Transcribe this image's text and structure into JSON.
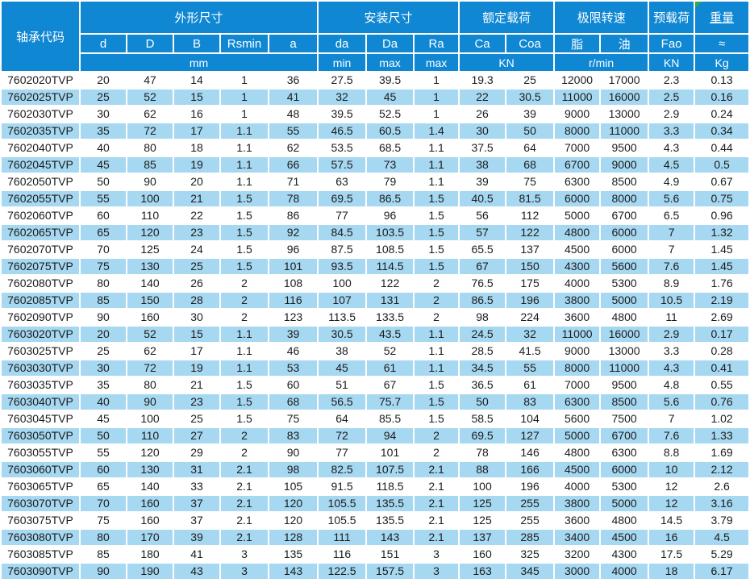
{
  "table": {
    "header": {
      "code_label": "轴承代码",
      "groups": {
        "dimensions": "外形尺寸",
        "mounting": "安装尺寸",
        "rated_load": "额定载荷",
        "limit_speed": "极限转速",
        "preload": "预载荷",
        "weight": "重量"
      },
      "sub": [
        "d",
        "D",
        "B",
        "Rsmin",
        "a",
        "da",
        "Da",
        "Ra",
        "Ca",
        "Coa",
        "脂",
        "油",
        "Fao",
        "≈"
      ],
      "units": {
        "mm": "mm",
        "da_min": "min",
        "da_max": "max",
        "ra_max": "max",
        "load_kn": "KN",
        "speed_rmin": "r/min",
        "preload_kn": "KN",
        "weight_kg": "Kg"
      }
    },
    "colors": {
      "header_blue": "#0f87d3",
      "stripe_blue": "#a6d8f1",
      "text": "#1c1c1c",
      "marker_green": "#3ba83b"
    },
    "rows": [
      [
        "7602020TVP",
        "20",
        "47",
        "14",
        "1",
        "36",
        "27.5",
        "39.5",
        "1",
        "19.3",
        "25",
        "12000",
        "17000",
        "2.3",
        "0.13"
      ],
      [
        "7602025TVP",
        "25",
        "52",
        "15",
        "1",
        "41",
        "32",
        "45",
        "1",
        "22",
        "30.5",
        "11000",
        "16000",
        "2.5",
        "0.16"
      ],
      [
        "7602030TVP",
        "30",
        "62",
        "16",
        "1",
        "48",
        "39.5",
        "52.5",
        "1",
        "26",
        "39",
        "9000",
        "13000",
        "2.9",
        "0.24"
      ],
      [
        "7602035TVP",
        "35",
        "72",
        "17",
        "1.1",
        "55",
        "46.5",
        "60.5",
        "1.4",
        "30",
        "50",
        "8000",
        "11000",
        "3.3",
        "0.34"
      ],
      [
        "7602040TVP",
        "40",
        "80",
        "18",
        "1.1",
        "62",
        "53.5",
        "68.5",
        "1.1",
        "37.5",
        "64",
        "7000",
        "9500",
        "4.3",
        "0.44"
      ],
      [
        "7602045TVP",
        "45",
        "85",
        "19",
        "1.1",
        "66",
        "57.5",
        "73",
        "1.1",
        "38",
        "68",
        "6700",
        "9000",
        "4.5",
        "0.5"
      ],
      [
        "7602050TVP",
        "50",
        "90",
        "20",
        "1.1",
        "71",
        "63",
        "79",
        "1.1",
        "39",
        "75",
        "6300",
        "8500",
        "4.9",
        "0.67"
      ],
      [
        "7602055TVP",
        "55",
        "100",
        "21",
        "1.5",
        "78",
        "69.5",
        "86.5",
        "1.5",
        "40.5",
        "81.5",
        "6000",
        "8000",
        "5.6",
        "0.75"
      ],
      [
        "7602060TVP",
        "60",
        "110",
        "22",
        "1.5",
        "86",
        "77",
        "96",
        "1.5",
        "56",
        "112",
        "5000",
        "6700",
        "6.5",
        "0.96"
      ],
      [
        "7602065TVP",
        "65",
        "120",
        "23",
        "1.5",
        "92",
        "84.5",
        "103.5",
        "1.5",
        "57",
        "122",
        "4800",
        "6000",
        "7",
        "1.32"
      ],
      [
        "7602070TVP",
        "70",
        "125",
        "24",
        "1.5",
        "96",
        "87.5",
        "108.5",
        "1.5",
        "65.5",
        "137",
        "4500",
        "6000",
        "7",
        "1.45"
      ],
      [
        "7602075TVP",
        "75",
        "130",
        "25",
        "1.5",
        "101",
        "93.5",
        "114.5",
        "1.5",
        "67",
        "150",
        "4300",
        "5600",
        "7.6",
        "1.45"
      ],
      [
        "7602080TVP",
        "80",
        "140",
        "26",
        "2",
        "108",
        "100",
        "122",
        "2",
        "76.5",
        "175",
        "4000",
        "5300",
        "8.9",
        "1.76"
      ],
      [
        "7602085TVP",
        "85",
        "150",
        "28",
        "2",
        "116",
        "107",
        "131",
        "2",
        "86.5",
        "196",
        "3800",
        "5000",
        "10.5",
        "2.19"
      ],
      [
        "7602090TVP",
        "90",
        "160",
        "30",
        "2",
        "123",
        "113.5",
        "133.5",
        "2",
        "98",
        "224",
        "3600",
        "4800",
        "11",
        "2.69"
      ],
      [
        "7603020TVP",
        "20",
        "52",
        "15",
        "1.1",
        "39",
        "30.5",
        "43.5",
        "1.1",
        "24.5",
        "32",
        "11000",
        "16000",
        "2.9",
        "0.17"
      ],
      [
        "7603025TVP",
        "25",
        "62",
        "17",
        "1.1",
        "46",
        "38",
        "52",
        "1.1",
        "28.5",
        "41.5",
        "9000",
        "13000",
        "3.3",
        "0.28"
      ],
      [
        "7603030TVP",
        "30",
        "72",
        "19",
        "1.1",
        "53",
        "45",
        "61",
        "1.1",
        "34.5",
        "55",
        "8000",
        "11000",
        "4.3",
        "0.41"
      ],
      [
        "7603035TVP",
        "35",
        "80",
        "21",
        "1.5",
        "60",
        "51",
        "67",
        "1.5",
        "36.5",
        "61",
        "7000",
        "9500",
        "4.8",
        "0.55"
      ],
      [
        "7603040TVP",
        "40",
        "90",
        "23",
        "1.5",
        "68",
        "56.5",
        "75.7",
        "1.5",
        "50",
        "83",
        "6300",
        "8500",
        "5.6",
        "0.76"
      ],
      [
        "7603045TVP",
        "45",
        "100",
        "25",
        "1.5",
        "75",
        "64",
        "85.5",
        "1.5",
        "58.5",
        "104",
        "5600",
        "7500",
        "7",
        "1.02"
      ],
      [
        "7603050TVP",
        "50",
        "110",
        "27",
        "2",
        "83",
        "72",
        "94",
        "2",
        "69.5",
        "127",
        "5000",
        "6700",
        "7.6",
        "1.33"
      ],
      [
        "7603055TVP",
        "55",
        "120",
        "29",
        "2",
        "90",
        "77",
        "101",
        "2",
        "78",
        "146",
        "4800",
        "6300",
        "8.8",
        "1.69"
      ],
      [
        "7603060TVP",
        "60",
        "130",
        "31",
        "2.1",
        "98",
        "82.5",
        "107.5",
        "2.1",
        "88",
        "166",
        "4500",
        "6000",
        "10",
        "2.12"
      ],
      [
        "7603065TVP",
        "65",
        "140",
        "33",
        "2.1",
        "105",
        "91.5",
        "118.5",
        "2.1",
        "100",
        "196",
        "4000",
        "5300",
        "12",
        "2.6"
      ],
      [
        "7603070TVP",
        "70",
        "160",
        "37",
        "2.1",
        "120",
        "105.5",
        "135.5",
        "2.1",
        "125",
        "255",
        "3800",
        "5000",
        "12",
        "3.16"
      ],
      [
        "7603075TVP",
        "75",
        "160",
        "37",
        "2.1",
        "120",
        "105.5",
        "135.5",
        "2.1",
        "125",
        "255",
        "3600",
        "4800",
        "14.5",
        "3.79"
      ],
      [
        "7603080TVP",
        "80",
        "170",
        "39",
        "2.1",
        "128",
        "111",
        "143",
        "2.1",
        "137",
        "285",
        "3400",
        "4500",
        "16",
        "4.5"
      ],
      [
        "7603085TVP",
        "85",
        "180",
        "41",
        "3",
        "135",
        "116",
        "151",
        "3",
        "160",
        "325",
        "3200",
        "4300",
        "17.5",
        "5.29"
      ],
      [
        "7603090TVP",
        "90",
        "190",
        "43",
        "3",
        "143",
        "122.5",
        "157.5",
        "3",
        "163",
        "345",
        "3000",
        "4000",
        "18",
        "6.17"
      ]
    ]
  }
}
